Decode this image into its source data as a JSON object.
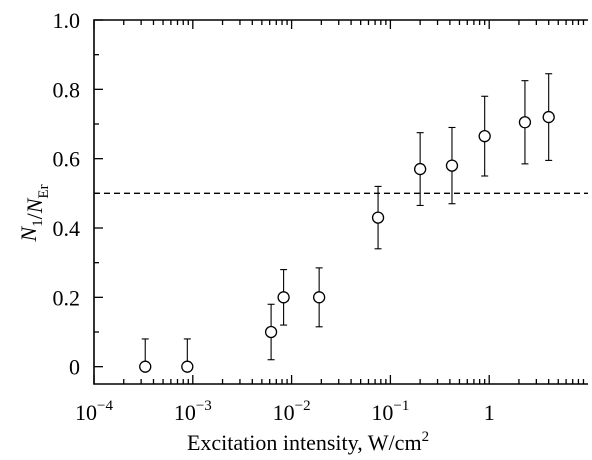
{
  "chart_data": {
    "type": "scatter",
    "title": "",
    "xlabel": "Excitation intensity, W/cm",
    "xlabel_superscript": "2",
    "ylabel_parts": [
      {
        "text": "N",
        "style": "italic",
        "sub": "1"
      },
      {
        "text": "/",
        "style": "normal"
      },
      {
        "text": "N",
        "style": "italic",
        "sub": "Er"
      }
    ],
    "x_scale": "log",
    "xlim": [
      0.0001,
      10
    ],
    "ylim": [
      -0.05,
      1.0
    ],
    "x_ticks": [
      {
        "value": 0.0001,
        "base": "10",
        "exp": "−4"
      },
      {
        "value": 0.001,
        "base": "10",
        "exp": "−3"
      },
      {
        "value": 0.01,
        "base": "10",
        "exp": "−2"
      },
      {
        "value": 0.1,
        "base": "10",
        "exp": "−1"
      },
      {
        "value": 1,
        "base": "1",
        "exp": ""
      }
    ],
    "y_ticks": [
      {
        "value": 0,
        "label": "0"
      },
      {
        "value": 0.2,
        "label": "0.2"
      },
      {
        "value": 0.4,
        "label": "0.4"
      },
      {
        "value": 0.6,
        "label": "0.6"
      },
      {
        "value": 0.8,
        "label": "0.8"
      },
      {
        "value": 1.0,
        "label": "1.0"
      }
    ],
    "reference_line": {
      "y": 0.5,
      "style": "dashed"
    },
    "marker": "open-circle",
    "grid": false,
    "legend": "none",
    "points": [
      {
        "x": 0.00033,
        "y": 0.0,
        "err_up": 0.08,
        "err_down": 0.0
      },
      {
        "x": 0.00088,
        "y": 0.0,
        "err_up": 0.08,
        "err_down": 0.0
      },
      {
        "x": 0.0062,
        "y": 0.1,
        "err_up": 0.08,
        "err_down": 0.08
      },
      {
        "x": 0.0083,
        "y": 0.2,
        "err_up": 0.08,
        "err_down": 0.08
      },
      {
        "x": 0.019,
        "y": 0.2,
        "err_up": 0.085,
        "err_down": 0.085
      },
      {
        "x": 0.075,
        "y": 0.43,
        "err_up": 0.09,
        "err_down": 0.09
      },
      {
        "x": 0.2,
        "y": 0.57,
        "err_up": 0.105,
        "err_down": 0.105
      },
      {
        "x": 0.42,
        "y": 0.58,
        "err_up": 0.11,
        "err_down": 0.11
      },
      {
        "x": 0.9,
        "y": 0.665,
        "err_up": 0.115,
        "err_down": 0.115
      },
      {
        "x": 2.3,
        "y": 0.705,
        "err_up": 0.12,
        "err_down": 0.12
      },
      {
        "x": 4.0,
        "y": 0.72,
        "err_up": 0.125,
        "err_down": 0.125
      }
    ]
  }
}
